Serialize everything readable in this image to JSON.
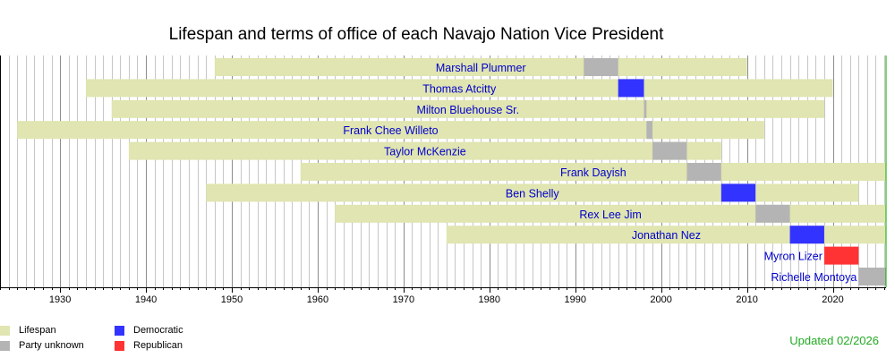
{
  "chart_data": {
    "type": "bar",
    "title": "Lifespan and terms of office of each Navajo Nation Vice President",
    "xlim": [
      1923,
      2026.2
    ],
    "x_ticks": [
      1930,
      1940,
      1950,
      1960,
      1970,
      1980,
      1990,
      2000,
      2010,
      2020
    ],
    "people": [
      {
        "name": "Marshall Plummer",
        "lifespan": [
          1948,
          2010
        ],
        "terms": [
          {
            "start": 1991,
            "end": 1995,
            "party": "unknown"
          }
        ]
      },
      {
        "name": "Thomas Atcitty",
        "lifespan": [
          1933,
          2020
        ],
        "terms": [
          {
            "start": 1995,
            "end": 1998,
            "party": "democratic"
          }
        ]
      },
      {
        "name": "Milton Bluehouse Sr.",
        "lifespan": [
          1936,
          2019
        ],
        "terms": [
          {
            "start": 1998,
            "end": 1998.3,
            "party": "unknown"
          }
        ]
      },
      {
        "name": "Frank Chee Willeto",
        "lifespan": [
          1925,
          2012
        ],
        "terms": [
          {
            "start": 1998.3,
            "end": 1999,
            "party": "unknown"
          }
        ]
      },
      {
        "name": "Taylor McKenzie",
        "lifespan": [
          1938,
          2007
        ],
        "terms": [
          {
            "start": 1999,
            "end": 2003,
            "party": "unknown"
          }
        ]
      },
      {
        "name": "Frank Dayish",
        "lifespan": [
          1958,
          2026.2
        ],
        "terms": [
          {
            "start": 2003,
            "end": 2007,
            "party": "unknown"
          }
        ]
      },
      {
        "name": "Ben Shelly",
        "lifespan": [
          1947,
          2023
        ],
        "terms": [
          {
            "start": 2007,
            "end": 2011,
            "party": "democratic"
          }
        ]
      },
      {
        "name": "Rex Lee Jim",
        "lifespan": [
          1962,
          2026.2
        ],
        "terms": [
          {
            "start": 2011,
            "end": 2015,
            "party": "unknown"
          }
        ]
      },
      {
        "name": "Jonathan Nez",
        "lifespan": [
          1975,
          2026.2
        ],
        "terms": [
          {
            "start": 2015,
            "end": 2019,
            "party": "democratic"
          }
        ]
      },
      {
        "name": "Myron Lizer",
        "lifespan": [],
        "terms": [
          {
            "start": 2019,
            "end": 2023,
            "party": "republican"
          }
        ]
      },
      {
        "name": "Richelle Montoya",
        "lifespan": [],
        "terms": [
          {
            "start": 2023,
            "end": 2026.2,
            "party": "unknown"
          }
        ]
      }
    ],
    "grid": true,
    "legend_position": "bottom-left"
  },
  "colors": {
    "lifespan": "#e0e5b1",
    "unknown": "#b4b4b4",
    "democratic": "#3333ff",
    "republican": "#ff3333",
    "name_text": "#0000cc",
    "gridline": "#c6c6c6",
    "decade_line": "#8c8c8c",
    "axis": "#000000",
    "today_line": "#00aa00",
    "updated_text": "#22aa22"
  },
  "legend": {
    "lifespan": "Lifespan",
    "unknown": "Party unknown",
    "democratic": "Democratic",
    "republican": "Republican"
  },
  "updated_note": "Updated 02/2026"
}
